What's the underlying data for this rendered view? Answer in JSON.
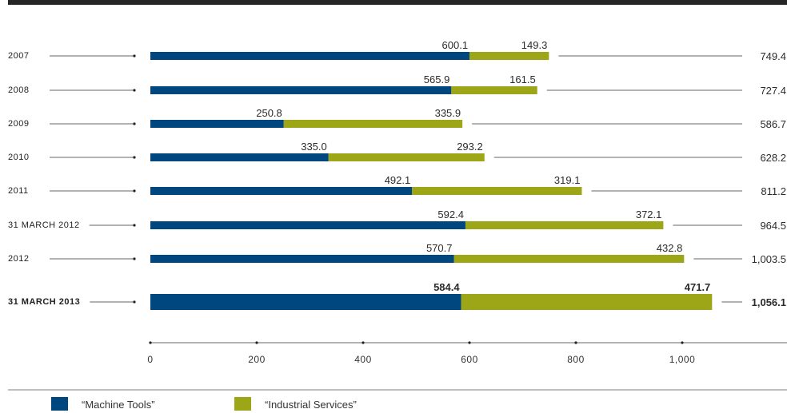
{
  "chart_data": {
    "type": "bar",
    "orientation": "horizontal",
    "stacked": true,
    "title": "",
    "xlabel": "",
    "ylabel": "",
    "xlim": [
      0,
      1000
    ],
    "grid": false,
    "legend_position": "bottom-left",
    "categories": [
      "2007",
      "2008",
      "2009",
      "2010",
      "2011",
      "31 March 2012",
      "2012",
      "31 March 2013"
    ],
    "highlight_category": "31 March 2013",
    "series": [
      {
        "name": "“Machine Tools”",
        "color": "#00467f",
        "values": [
          600.1,
          565.9,
          250.8,
          335.0,
          492.1,
          592.4,
          570.7,
          584.4
        ],
        "value_labels": [
          "600.1",
          "565.9",
          "250.8",
          "335.0",
          "492.1",
          "592.4",
          "570.7",
          "584.4"
        ]
      },
      {
        "name": "“Industrial Services”",
        "color": "#9ca617",
        "values": [
          149.3,
          161.5,
          335.9,
          293.2,
          319.1,
          372.1,
          432.8,
          471.7
        ],
        "value_labels": [
          "149.3",
          "161.5",
          "335.9",
          "293.2",
          "319.1",
          "372.1",
          "432.8",
          "471.7"
        ]
      }
    ],
    "totals": [
      749.4,
      727.4,
      586.7,
      628.2,
      811.2,
      964.5,
      1003.5,
      1056.1
    ],
    "total_labels": [
      "749.4",
      "727.4",
      "586.7",
      "628.2",
      "811.2",
      "964.5",
      "1,003.5",
      "1,056.1"
    ],
    "x_ticks": [
      0,
      200,
      400,
      600,
      800,
      1000
    ],
    "x_tick_labels": [
      "0",
      "200",
      "400",
      "600",
      "800",
      "1,000"
    ]
  }
}
